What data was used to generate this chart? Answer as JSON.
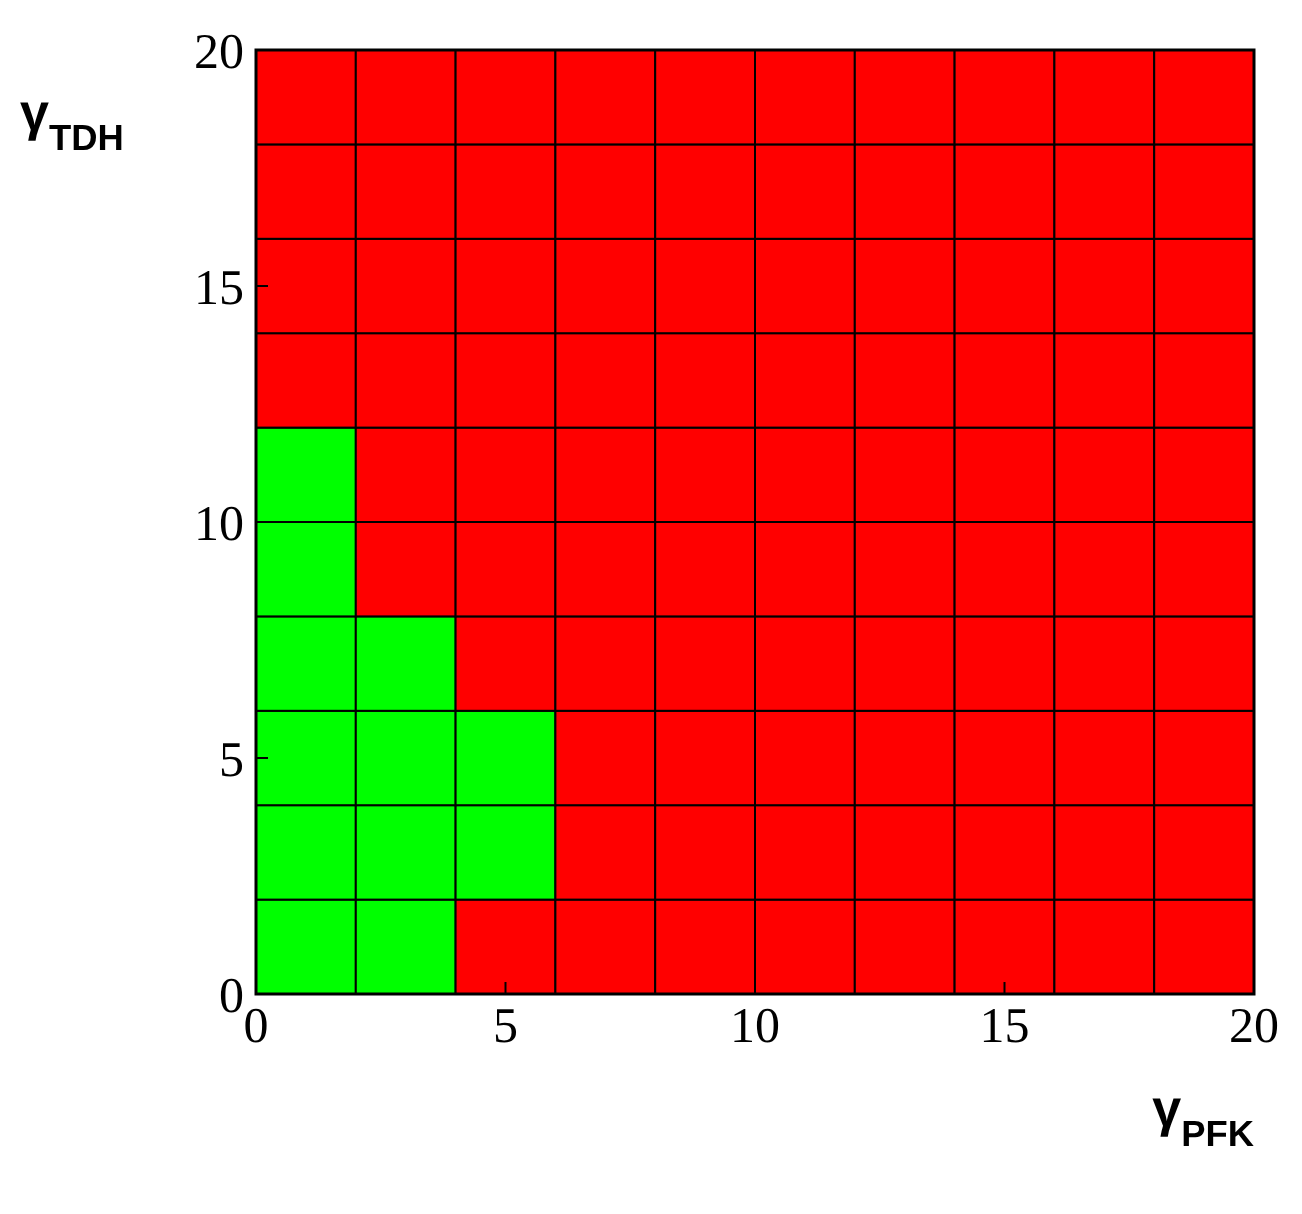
{
  "chart_data": {
    "type": "bar",
    "stacked": true,
    "xlabel": "γ$_{PFK}$",
    "ylabel": "γ$_{TDH}$",
    "x": [
      1,
      3,
      5,
      7,
      9,
      11,
      13,
      15,
      17,
      19
    ],
    "xlim": [
      0,
      20
    ],
    "ylim": [
      0,
      20
    ],
    "xticks": [
      0,
      5,
      10,
      15,
      20
    ],
    "yticks": [
      0,
      5,
      10,
      15,
      20
    ],
    "series": [
      {
        "values": [
          2,
          2,
          2,
          2,
          2,
          2,
          2,
          2,
          2,
          2
        ],
        "colors": [
          "#00ff00",
          "#00ff00",
          "#ff0000",
          "#ff0000",
          "#ff0000",
          "#ff0000",
          "#ff0000",
          "#ff0000",
          "#ff0000",
          "#ff0000"
        ]
      },
      {
        "values": [
          2,
          2,
          2,
          2,
          2,
          2,
          2,
          2,
          2,
          2
        ],
        "colors": [
          "#00ff00",
          "#00ff00",
          "#00ff00",
          "#ff0000",
          "#ff0000",
          "#ff0000",
          "#ff0000",
          "#ff0000",
          "#ff0000",
          "#ff0000"
        ]
      },
      {
        "values": [
          2,
          2,
          2,
          2,
          2,
          2,
          2,
          2,
          2,
          2
        ],
        "colors": [
          "#00ff00",
          "#00ff00",
          "#00ff00",
          "#ff0000",
          "#ff0000",
          "#ff0000",
          "#ff0000",
          "#ff0000",
          "#ff0000",
          "#ff0000"
        ]
      },
      {
        "values": [
          2,
          2,
          2,
          2,
          2,
          2,
          2,
          2,
          2,
          2
        ],
        "colors": [
          "#00ff00",
          "#00ff00",
          "#ff0000",
          "#ff0000",
          "#ff0000",
          "#ff0000",
          "#ff0000",
          "#ff0000",
          "#ff0000",
          "#ff0000"
        ]
      },
      {
        "values": [
          2,
          2,
          2,
          2,
          2,
          2,
          2,
          2,
          2,
          2
        ],
        "colors": [
          "#00ff00",
          "#ff0000",
          "#ff0000",
          "#ff0000",
          "#ff0000",
          "#ff0000",
          "#ff0000",
          "#ff0000",
          "#ff0000",
          "#ff0000"
        ]
      },
      {
        "values": [
          2,
          2,
          2,
          2,
          2,
          2,
          2,
          2,
          2,
          2
        ],
        "colors": [
          "#00ff00",
          "#ff0000",
          "#ff0000",
          "#ff0000",
          "#ff0000",
          "#ff0000",
          "#ff0000",
          "#ff0000",
          "#ff0000",
          "#ff0000"
        ]
      },
      {
        "values": [
          2,
          2,
          2,
          2,
          2,
          2,
          2,
          2,
          2,
          2
        ],
        "colors": [
          "#ff0000",
          "#ff0000",
          "#ff0000",
          "#ff0000",
          "#ff0000",
          "#ff0000",
          "#ff0000",
          "#ff0000",
          "#ff0000",
          "#ff0000"
        ]
      },
      {
        "values": [
          2,
          2,
          2,
          2,
          2,
          2,
          2,
          2,
          2,
          2
        ],
        "colors": [
          "#ff0000",
          "#ff0000",
          "#ff0000",
          "#ff0000",
          "#ff0000",
          "#ff0000",
          "#ff0000",
          "#ff0000",
          "#ff0000",
          "#ff0000"
        ]
      },
      {
        "values": [
          2,
          2,
          2,
          2,
          2,
          2,
          2,
          2,
          2,
          2
        ],
        "colors": [
          "#ff0000",
          "#ff0000",
          "#ff0000",
          "#ff0000",
          "#ff0000",
          "#ff0000",
          "#ff0000",
          "#ff0000",
          "#ff0000",
          "#ff0000"
        ]
      },
      {
        "values": [
          2,
          2,
          2,
          2,
          2,
          2,
          2,
          2,
          2,
          2
        ],
        "colors": [
          "#ff0000",
          "#ff0000",
          "#ff0000",
          "#ff0000",
          "#ff0000",
          "#ff0000",
          "#ff0000",
          "#ff0000",
          "#ff0000",
          "#ff0000"
        ]
      }
    ]
  }
}
